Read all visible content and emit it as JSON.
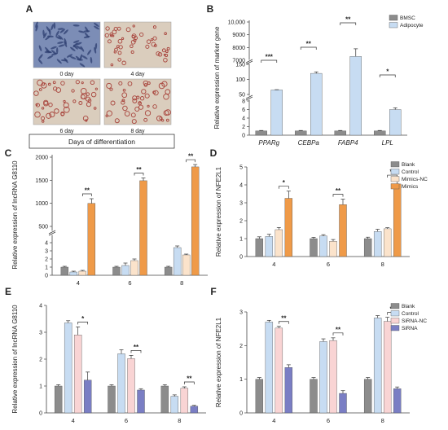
{
  "panel_letters": [
    "A",
    "B",
    "C",
    "D",
    "E",
    "F"
  ],
  "panel_a": {
    "images": [
      {
        "label": "0 day",
        "stain": "blue"
      },
      {
        "label": "4 day",
        "stain": "red"
      },
      {
        "label": "6 day",
        "stain": "red"
      },
      {
        "label": "8 day",
        "stain": "red"
      }
    ],
    "caption": "Days of differentiation"
  },
  "colors": {
    "grey": "#8c8c8c",
    "lightblue": "#c7dcf2",
    "peach": "#fbe3cb",
    "orange": "#ef9a48",
    "pink": "#f9d4d4",
    "purple": "#7a7ec4"
  },
  "chart_data": [
    {
      "panel": "B",
      "type": "bar",
      "ylabel": "Relative expression of marker gene",
      "categories": [
        "PPARg",
        "CEBPa",
        "FABP4",
        "LPL"
      ],
      "series": [
        {
          "name": "BMSC",
          "color": "#8c8c8c",
          "values": [
            1,
            1,
            1,
            1
          ],
          "errors": [
            0.1,
            0.1,
            0.1,
            0.1
          ]
        },
        {
          "name": "Adipocyte",
          "color": "#c7dcf2",
          "values": [
            65,
            120,
            7300,
            6
          ],
          "errors": [
            1,
            5,
            600,
            0.4
          ]
        }
      ],
      "yticks": [
        "0",
        "2",
        "4",
        "6",
        "8",
        "50",
        "100",
        "150",
        "7000",
        "8000",
        "9000",
        "10,000"
      ],
      "significance": [
        "***",
        "**",
        "**",
        "*"
      ]
    },
    {
      "panel": "C",
      "type": "bar",
      "ylabel": "Relative expression of lncRNA G8110",
      "categories": [
        "4",
        "6",
        "8"
      ],
      "series": [
        {
          "name": "Blank",
          "color": "#8c8c8c",
          "values": [
            1,
            1,
            1
          ],
          "errors": [
            0.1,
            0.1,
            0.1
          ]
        },
        {
          "name": "Control",
          "color": "#c7dcf2",
          "values": [
            0.4,
            1.2,
            3.4
          ],
          "errors": [
            0.1,
            0.3,
            0.2
          ]
        },
        {
          "name": "Mimics-NC",
          "color": "#fbe3cb",
          "values": [
            0.5,
            1.8,
            2.5
          ],
          "errors": [
            0.1,
            0.2,
            0.1
          ]
        },
        {
          "name": "Mimics",
          "color": "#ef9a48",
          "values": [
            1000,
            1490,
            1790
          ],
          "errors": [
            100,
            60,
            50
          ]
        }
      ],
      "yticks": [
        "0",
        "1",
        "2",
        "3",
        "4",
        "500",
        "1000",
        "1500",
        "2000"
      ],
      "significance": [
        "**",
        "**",
        "**"
      ]
    },
    {
      "panel": "D",
      "type": "bar",
      "ylabel": "Relative expression  of NFE2L1",
      "categories": [
        "4",
        "6",
        "8"
      ],
      "series": [
        {
          "name": "Blank",
          "color": "#8c8c8c",
          "values": [
            1.0,
            1.0,
            1.0
          ],
          "errors": [
            0.1,
            0.07,
            0.08
          ]
        },
        {
          "name": "Control",
          "color": "#c7dcf2",
          "values": [
            1.12,
            1.15,
            1.4
          ],
          "errors": [
            0.12,
            0.07,
            0.12
          ]
        },
        {
          "name": "Mimics-NC",
          "color": "#fbe3cb",
          "values": [
            1.5,
            0.85,
            1.55
          ],
          "errors": [
            0.12,
            0.1,
            0.06
          ]
        },
        {
          "name": "Mimics",
          "color": "#ef9a48",
          "values": [
            3.25,
            2.9,
            4.05
          ],
          "errors": [
            0.4,
            0.3,
            0.22
          ]
        }
      ],
      "ylim": [
        0,
        5
      ],
      "yticks": [
        "0",
        "1",
        "2",
        "3",
        "4",
        "5"
      ],
      "significance": [
        "*",
        "**",
        "**"
      ]
    },
    {
      "panel": "E",
      "type": "bar",
      "ylabel": "Relative expression of lncRNA G8110",
      "categories": [
        "4",
        "6",
        "8"
      ],
      "series": [
        {
          "name": "Blank",
          "color": "#8c8c8c",
          "values": [
            1.0,
            1.0,
            1.0
          ],
          "errors": [
            0.05,
            0.05,
            0.05
          ]
        },
        {
          "name": "Control",
          "color": "#c7dcf2",
          "values": [
            3.35,
            2.2,
            0.62
          ],
          "errors": [
            0.08,
            0.15,
            0.05
          ]
        },
        {
          "name": "SiRNA-NC",
          "color": "#f9d4d4",
          "values": [
            2.9,
            2.02,
            0.92
          ],
          "errors": [
            0.3,
            0.12,
            0.05
          ]
        },
        {
          "name": "SiRNA",
          "color": "#7a7ec4",
          "values": [
            1.22,
            0.85,
            0.25
          ],
          "errors": [
            0.3,
            0.05,
            0.03
          ]
        }
      ],
      "ylim": [
        0,
        4
      ],
      "yticks": [
        "0",
        "1",
        "2",
        "3",
        "4"
      ],
      "significance": [
        "*",
        "**",
        "**"
      ]
    },
    {
      "panel": "F",
      "type": "bar",
      "ylabel": "Relative expression of NFE2L1",
      "categories": [
        "4",
        "6",
        "8"
      ],
      "series": [
        {
          "name": "Blank",
          "color": "#8c8c8c",
          "values": [
            1.0,
            1.0,
            1.0
          ],
          "errors": [
            0.05,
            0.05,
            0.05
          ]
        },
        {
          "name": "Control",
          "color": "#c7dcf2",
          "values": [
            2.7,
            2.12,
            2.82
          ],
          "errors": [
            0.05,
            0.08,
            0.07
          ]
        },
        {
          "name": "SiRNA-NC",
          "color": "#f9d4d4",
          "values": [
            2.52,
            2.15,
            2.72
          ],
          "errors": [
            0.05,
            0.08,
            0.12
          ]
        },
        {
          "name": "SiRNA",
          "color": "#7a7ec4",
          "values": [
            1.35,
            0.58,
            0.72
          ],
          "errors": [
            0.08,
            0.08,
            0.05
          ]
        }
      ],
      "ylim": [
        0,
        3
      ],
      "yticks": [
        "0",
        "1",
        "2",
        "3"
      ],
      "significance": [
        "**",
        "**",
        "**"
      ]
    }
  ]
}
